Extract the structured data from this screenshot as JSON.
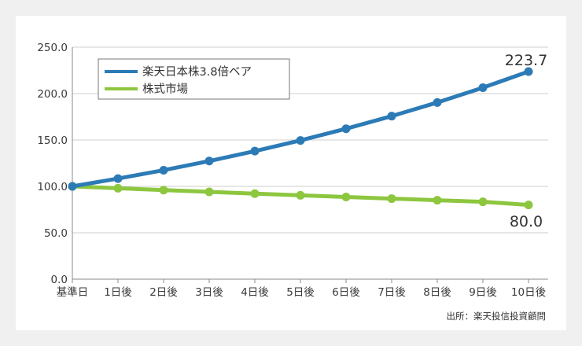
{
  "chart_data": {
    "type": "line",
    "categories": [
      "基準日",
      "1日後",
      "2日後",
      "3日後",
      "4日後",
      "5日後",
      "6日後",
      "7日後",
      "8日後",
      "9日後",
      "10日後"
    ],
    "series": [
      {
        "name": "楽天日本株3.8倍ベア",
        "color": "#2c7bb6",
        "values": [
          100.0,
          108.4,
          117.4,
          127.3,
          138.0,
          149.5,
          162.1,
          175.7,
          190.4,
          206.4,
          223.7
        ],
        "end_label": "223.7"
      },
      {
        "name": "株式市場",
        "color": "#8dc63f",
        "values": [
          100.0,
          98.0,
          96.0,
          94.1,
          92.2,
          90.4,
          88.6,
          86.8,
          85.1,
          83.4,
          80.0
        ],
        "end_label": "80.0"
      }
    ],
    "y_ticks": [
      "0.0",
      "50.0",
      "100.0",
      "150.0",
      "200.0",
      "250.0"
    ],
    "ylim": [
      0,
      250
    ],
    "grid": "horizontal",
    "legend_position": "top-left",
    "source": "出所：楽天投信投資顧問"
  }
}
